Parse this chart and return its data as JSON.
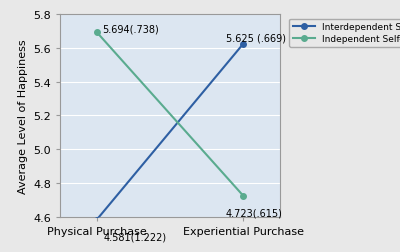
{
  "x_labels": [
    "Physical Purchase",
    "Experiential Purchase"
  ],
  "interdependent": [
    4.581,
    5.625
  ],
  "independent": [
    5.694,
    4.723
  ],
  "interdependent_labels": [
    "4.581(1.222)",
    "5.625 (.669)"
  ],
  "independent_labels": [
    "5.694(.738)",
    "4.723(.615)"
  ],
  "interdependent_color": "#2e5fa3",
  "independent_color": "#5aab8f",
  "ylim": [
    4.6,
    5.8
  ],
  "yticks": [
    4.6,
    4.8,
    5.0,
    5.2,
    5.4,
    5.6,
    5.8
  ],
  "ylabel": "Average Level of Happiness",
  "legend_labels": [
    "Interdependent Self-Construal",
    "Independent Self-Construal"
  ],
  "background_color": "#e8e8e8",
  "plot_bg_color": "#dce6f1",
  "marker": "o",
  "marker_size": 4,
  "figsize": [
    4.0,
    2.53
  ],
  "dpi": 100
}
